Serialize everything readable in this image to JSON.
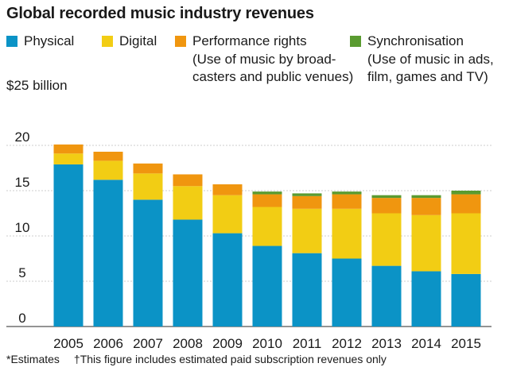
{
  "chart_data": {
    "type": "bar",
    "stacked": true,
    "title": "Global recorded music industry revenues",
    "ylabel": "$25 billion",
    "ylim": [
      0,
      25
    ],
    "yticks": [
      0,
      5,
      10,
      15,
      20
    ],
    "categories": [
      "2005",
      "2006",
      "2007",
      "2008",
      "2009",
      "2010",
      "2011",
      "2012",
      "2013",
      "2014",
      "2015"
    ],
    "series": [
      {
        "name": "Physical",
        "color": "#0b93c6",
        "values": [
          17.9,
          16.2,
          14.0,
          11.8,
          10.3,
          8.9,
          8.1,
          7.5,
          6.7,
          6.1,
          5.8
        ]
      },
      {
        "name": "Digital",
        "color": "#f2cd14",
        "values": [
          1.2,
          2.1,
          2.9,
          3.7,
          4.2,
          4.3,
          4.9,
          5.5,
          5.8,
          6.2,
          6.7
        ]
      },
      {
        "name": "Performance rights",
        "color": "#f0960f",
        "values": [
          1.0,
          1.0,
          1.1,
          1.3,
          1.2,
          1.4,
          1.4,
          1.6,
          1.7,
          1.9,
          2.1
        ]
      },
      {
        "name": "Synchronisation",
        "color": "#5a9b30",
        "values": [
          0.0,
          0.0,
          0.0,
          0.0,
          0.0,
          0.3,
          0.3,
          0.3,
          0.3,
          0.3,
          0.4
        ]
      }
    ],
    "grid": true,
    "legend": "top"
  },
  "legend": {
    "items": [
      {
        "label": "Physical",
        "note": ""
      },
      {
        "label": "Digital",
        "note": ""
      },
      {
        "label": "Performance rights",
        "note_lines": [
          "(Use of music by broad-",
          "casters and public venues)"
        ]
      },
      {
        "label": "Synchronisation",
        "note_lines": [
          "(Use of music in ads,",
          "film, games and TV)"
        ]
      }
    ]
  },
  "footnotes": {
    "estimates": "*Estimates",
    "subscription": "†This figure includes estimated paid subscription revenues only"
  }
}
